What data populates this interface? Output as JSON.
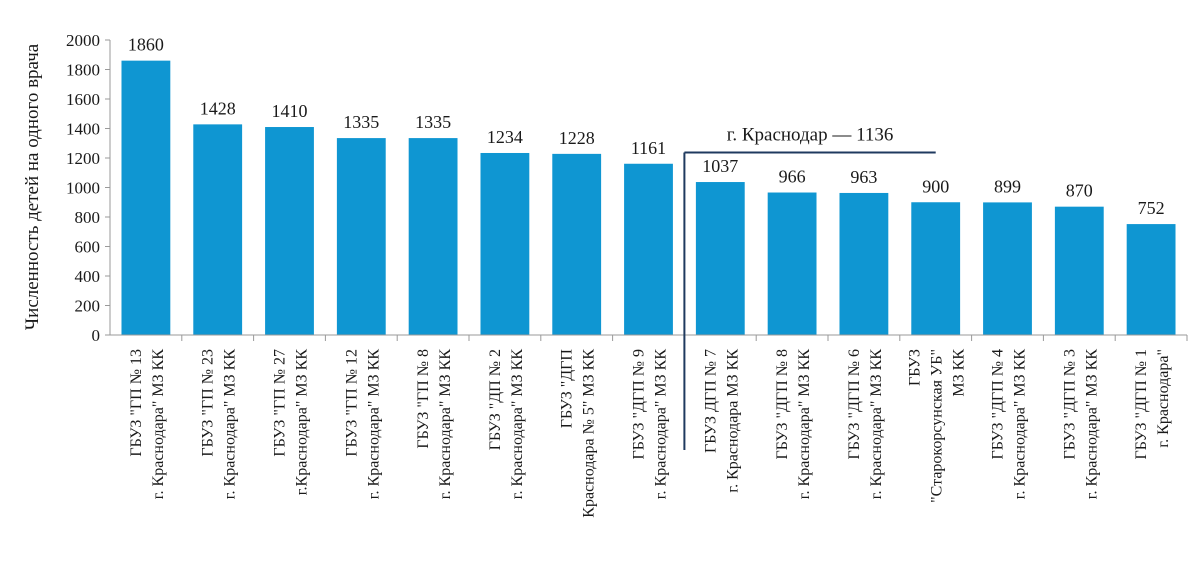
{
  "chart_data": {
    "type": "bar",
    "ylabel": "Численность детей на одного врача",
    "xlabel": "",
    "ylim": [
      0,
      2000
    ],
    "yticks": [
      0,
      200,
      400,
      600,
      800,
      1000,
      1200,
      1400,
      1600,
      1800,
      2000
    ],
    "grid": false,
    "bar_color": "#0f96d2",
    "categories": [
      [
        "ГБУЗ \"ГП № 13",
        "г. Краснодара\" МЗ КК"
      ],
      [
        "ГБУЗ \"ГП № 23",
        "г. Краснодара\" МЗ КК"
      ],
      [
        "ГБУЗ \"ГП № 27",
        "г.Краснодара\" МЗ КК"
      ],
      [
        "ГБУЗ \"ГП № 12",
        "г. Краснодара\" МЗ КК"
      ],
      [
        "ГБУЗ \"ГП № 8",
        "г. Краснодара\" МЗ КК"
      ],
      [
        "ГБУЗ \"ДП № 2",
        "г. Краснодара\" МЗ КК"
      ],
      [
        "ГБУЗ \"ДГП",
        "Краснодара № 5\" МЗ КК"
      ],
      [
        "ГБУЗ \"ДГП № 9",
        "г. Краснодара\" МЗ КК"
      ],
      [
        "ГБУЗ ДГП № 7",
        "г. Краснодара МЗ КК"
      ],
      [
        "ГБУЗ \"ДГП № 8",
        "г. Краснодара\" МЗ КК"
      ],
      [
        "ГБУЗ \"ДГП № 6",
        "г. Краснодара\" МЗ КК"
      ],
      [
        "ГБУЗ",
        "\"Старокорсунская УБ\"",
        "МЗ КК"
      ],
      [
        "ГБУЗ \"ДГП № 4",
        "г. Краснодара\" МЗ КК"
      ],
      [
        "ГБУЗ \"ДГП № 3",
        "г. Краснодара\" МЗ КК"
      ],
      [
        "ГБУЗ \"ДГП № 1",
        "г. Краснодара\""
      ]
    ],
    "values": [
      1860,
      1428,
      1410,
      1335,
      1335,
      1234,
      1228,
      1161,
      1037,
      966,
      963,
      900,
      899,
      870,
      752
    ],
    "annotation": {
      "text": "г. Краснодар — 1136",
      "value": 1136,
      "after_category_index": 7
    }
  }
}
